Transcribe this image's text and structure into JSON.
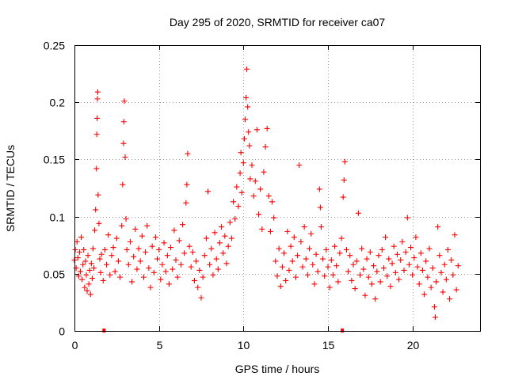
{
  "chart_data": {
    "type": "scatter",
    "title": "Day 295 of 2020, SRMTID for receiver ca07",
    "xlabel": "GPS time / hours",
    "ylabel": "SRMTID / TECUs",
    "xlim": [
      0,
      24
    ],
    "ylim": [
      0,
      0.25
    ],
    "xticks": [
      0,
      5,
      10,
      15,
      20
    ],
    "xtick_labels": [
      "0",
      "5",
      "10",
      "15",
      "20"
    ],
    "yticks": [
      0,
      0.05,
      0.1,
      0.15,
      0.2,
      0.25
    ],
    "ytick_labels": [
      "0",
      "0.05",
      "0.1",
      "0.15",
      "0.2",
      "0.25"
    ],
    "grid": true,
    "marker": "plus",
    "color": "#ff0000",
    "x_axis_markers": [
      1.75,
      15.85
    ],
    "series": [
      {
        "name": "SRMTID",
        "points": [
          [
            0.0,
            0.062
          ],
          [
            0.05,
            0.071
          ],
          [
            0.1,
            0.055
          ],
          [
            0.15,
            0.078
          ],
          [
            0.2,
            0.064
          ],
          [
            0.25,
            0.048
          ],
          [
            0.3,
            0.069
          ],
          [
            0.35,
            0.052
          ],
          [
            0.4,
            0.082
          ],
          [
            0.45,
            0.045
          ],
          [
            0.5,
            0.058
          ],
          [
            0.55,
            0.071
          ],
          [
            0.6,
            0.038
          ],
          [
            0.65,
            0.061
          ],
          [
            0.7,
            0.049
          ],
          [
            0.75,
            0.035
          ],
          [
            0.8,
            0.066
          ],
          [
            0.85,
            0.041
          ],
          [
            0.9,
            0.053
          ],
          [
            0.95,
            0.032
          ],
          [
            1.0,
            0.059
          ],
          [
            1.05,
            0.046
          ],
          [
            1.1,
            0.072
          ],
          [
            1.15,
            0.055
          ],
          [
            1.2,
            0.088
          ],
          [
            1.25,
            0.106
          ],
          [
            1.3,
            0.142
          ],
          [
            1.32,
            0.172
          ],
          [
            1.34,
            0.186
          ],
          [
            1.36,
            0.203
          ],
          [
            1.38,
            0.209
          ],
          [
            1.4,
            0.119
          ],
          [
            1.45,
            0.094
          ],
          [
            1.5,
            0.063
          ],
          [
            1.55,
            0.051
          ],
          [
            1.6,
            0.067
          ],
          [
            1.7,
            0.044
          ],
          [
            1.8,
            0.071
          ],
          [
            1.9,
            0.058
          ],
          [
            2.0,
            0.084
          ],
          [
            2.1,
            0.049
          ],
          [
            2.2,
            0.066
          ],
          [
            2.3,
            0.073
          ],
          [
            2.4,
            0.052
          ],
          [
            2.5,
            0.081
          ],
          [
            2.6,
            0.061
          ],
          [
            2.7,
            0.047
          ],
          [
            2.8,
            0.092
          ],
          [
            2.85,
            0.128
          ],
          [
            2.9,
            0.164
          ],
          [
            2.92,
            0.183
          ],
          [
            2.95,
            0.201
          ],
          [
            3.0,
            0.152
          ],
          [
            3.05,
            0.098
          ],
          [
            3.1,
            0.071
          ],
          [
            3.2,
            0.058
          ],
          [
            3.3,
            0.078
          ],
          [
            3.4,
            0.043
          ],
          [
            3.5,
            0.065
          ],
          [
            3.6,
            0.089
          ],
          [
            3.7,
            0.054
          ],
          [
            3.8,
            0.072
          ],
          [
            3.9,
            0.061
          ],
          [
            4.0,
            0.083
          ],
          [
            4.1,
            0.047
          ],
          [
            4.2,
            0.069
          ],
          [
            4.3,
            0.092
          ],
          [
            4.4,
            0.055
          ],
          [
            4.5,
            0.038
          ],
          [
            4.6,
            0.074
          ],
          [
            4.7,
            0.051
          ],
          [
            4.8,
            0.082
          ],
          [
            4.9,
            0.063
          ],
          [
            5.0,
            0.071
          ],
          [
            5.1,
            0.045
          ],
          [
            5.2,
            0.058
          ],
          [
            5.3,
            0.077
          ],
          [
            5.4,
            0.052
          ],
          [
            5.5,
            0.066
          ],
          [
            5.6,
            0.041
          ],
          [
            5.7,
            0.073
          ],
          [
            5.8,
            0.054
          ],
          [
            5.9,
            0.088
          ],
          [
            6.0,
            0.062
          ],
          [
            6.1,
            0.047
          ],
          [
            6.2,
            0.079
          ],
          [
            6.3,
            0.058
          ],
          [
            6.4,
            0.093
          ],
          [
            6.5,
            0.068
          ],
          [
            6.6,
            0.112
          ],
          [
            6.65,
            0.128
          ],
          [
            6.7,
            0.155
          ],
          [
            6.8,
            0.074
          ],
          [
            6.9,
            0.056
          ],
          [
            7.0,
            0.069
          ],
          [
            7.1,
            0.044
          ],
          [
            7.2,
            0.061
          ],
          [
            7.3,
            0.038
          ],
          [
            7.4,
            0.053
          ],
          [
            7.5,
            0.029
          ],
          [
            7.6,
            0.047
          ],
          [
            7.7,
            0.066
          ],
          [
            7.8,
            0.081
          ],
          [
            7.9,
            0.122
          ],
          [
            8.0,
            0.058
          ],
          [
            8.1,
            0.072
          ],
          [
            8.2,
            0.049
          ],
          [
            8.3,
            0.086
          ],
          [
            8.4,
            0.063
          ],
          [
            8.5,
            0.054
          ],
          [
            8.6,
            0.077
          ],
          [
            8.7,
            0.091
          ],
          [
            8.8,
            0.068
          ],
          [
            8.9,
            0.083
          ],
          [
            9.0,
            0.059
          ],
          [
            9.1,
            0.074
          ],
          [
            9.2,
            0.095
          ],
          [
            9.3,
            0.081
          ],
          [
            9.4,
            0.113
          ],
          [
            9.5,
            0.098
          ],
          [
            9.6,
            0.126
          ],
          [
            9.7,
            0.109
          ],
          [
            9.8,
            0.138
          ],
          [
            9.85,
            0.156
          ],
          [
            9.9,
            0.121
          ],
          [
            10.0,
            0.147
          ],
          [
            10.05,
            0.168
          ],
          [
            10.1,
            0.185
          ],
          [
            10.15,
            0.204
          ],
          [
            10.2,
            0.229
          ],
          [
            10.25,
            0.196
          ],
          [
            10.3,
            0.174
          ],
          [
            10.35,
            0.162
          ],
          [
            10.4,
            0.133
          ],
          [
            10.5,
            0.145
          ],
          [
            10.6,
            0.118
          ],
          [
            10.7,
            0.131
          ],
          [
            10.8,
            0.176
          ],
          [
            10.9,
            0.102
          ],
          [
            11.0,
            0.124
          ],
          [
            11.1,
            0.089
          ],
          [
            11.2,
            0.139
          ],
          [
            11.3,
            0.161
          ],
          [
            11.4,
            0.177
          ],
          [
            11.5,
            0.118
          ],
          [
            11.6,
            0.087
          ],
          [
            11.7,
            0.113
          ],
          [
            11.8,
            0.099
          ],
          [
            11.9,
            0.061
          ],
          [
            12.0,
            0.048
          ],
          [
            12.1,
            0.072
          ],
          [
            12.2,
            0.039
          ],
          [
            12.3,
            0.056
          ],
          [
            12.4,
            0.068
          ],
          [
            12.5,
            0.044
          ],
          [
            12.6,
            0.087
          ],
          [
            12.7,
            0.053
          ],
          [
            12.8,
            0.074
          ],
          [
            12.9,
            0.061
          ],
          [
            13.0,
            0.082
          ],
          [
            13.1,
            0.047
          ],
          [
            13.2,
            0.066
          ],
          [
            13.3,
            0.145
          ],
          [
            13.4,
            0.078
          ],
          [
            13.5,
            0.056
          ],
          [
            13.6,
            0.091
          ],
          [
            13.7,
            0.063
          ],
          [
            13.8,
            0.049
          ],
          [
            13.9,
            0.072
          ],
          [
            14.0,
            0.085
          ],
          [
            14.1,
            0.058
          ],
          [
            14.2,
            0.041
          ],
          [
            14.3,
            0.067
          ],
          [
            14.4,
            0.052
          ],
          [
            14.5,
            0.124
          ],
          [
            14.55,
            0.108
          ],
          [
            14.6,
            0.091
          ],
          [
            14.7,
            0.063
          ],
          [
            14.8,
            0.048
          ],
          [
            14.9,
            0.071
          ],
          [
            15.0,
            0.056
          ],
          [
            15.1,
            0.038
          ],
          [
            15.2,
            0.062
          ],
          [
            15.3,
            0.049
          ],
          [
            15.4,
            0.074
          ],
          [
            15.5,
            0.057
          ],
          [
            15.6,
            0.043
          ],
          [
            15.7,
            0.068
          ],
          [
            15.8,
            0.081
          ],
          [
            15.9,
            0.117
          ],
          [
            15.95,
            0.132
          ],
          [
            16.0,
            0.148
          ],
          [
            16.1,
            0.071
          ],
          [
            16.2,
            0.052
          ],
          [
            16.3,
            0.066
          ],
          [
            16.4,
            0.044
          ],
          [
            16.5,
            0.058
          ],
          [
            16.6,
            0.037
          ],
          [
            16.7,
            0.061
          ],
          [
            16.8,
            0.103
          ],
          [
            16.9,
            0.049
          ],
          [
            17.0,
            0.072
          ],
          [
            17.1,
            0.054
          ],
          [
            17.2,
            0.031
          ],
          [
            17.3,
            0.063
          ],
          [
            17.4,
            0.047
          ],
          [
            17.5,
            0.069
          ],
          [
            17.6,
            0.041
          ],
          [
            17.7,
            0.057
          ],
          [
            17.8,
            0.028
          ],
          [
            17.9,
            0.052
          ],
          [
            18.0,
            0.066
          ],
          [
            18.1,
            0.043
          ],
          [
            18.2,
            0.071
          ],
          [
            18.3,
            0.055
          ],
          [
            18.4,
            0.082
          ],
          [
            18.5,
            0.048
          ],
          [
            18.6,
            0.063
          ],
          [
            18.7,
            0.039
          ],
          [
            18.8,
            0.059
          ],
          [
            18.9,
            0.074
          ],
          [
            19.0,
            0.051
          ],
          [
            19.1,
            0.067
          ],
          [
            19.2,
            0.045
          ],
          [
            19.3,
            0.062
          ],
          [
            19.4,
            0.078
          ],
          [
            19.5,
            0.053
          ],
          [
            19.6,
            0.069
          ],
          [
            19.7,
            0.099
          ],
          [
            19.8,
            0.058
          ],
          [
            19.9,
            0.073
          ],
          [
            20.0,
            0.049
          ],
          [
            20.1,
            0.064
          ],
          [
            20.2,
            0.082
          ],
          [
            20.3,
            0.056
          ],
          [
            20.4,
            0.041
          ],
          [
            20.5,
            0.068
          ],
          [
            20.6,
            0.053
          ],
          [
            20.7,
            0.032
          ],
          [
            20.8,
            0.061
          ],
          [
            20.9,
            0.047
          ],
          [
            21.0,
            0.072
          ],
          [
            21.1,
            0.038
          ],
          [
            21.2,
            0.055
          ],
          [
            21.3,
            0.021
          ],
          [
            21.35,
            0.012
          ],
          [
            21.4,
            0.043
          ],
          [
            21.5,
            0.091
          ],
          [
            21.6,
            0.066
          ],
          [
            21.7,
            0.051
          ],
          [
            21.8,
            0.034
          ],
          [
            21.9,
            0.058
          ],
          [
            22.0,
            0.045
          ],
          [
            22.1,
            0.071
          ],
          [
            22.2,
            0.028
          ],
          [
            22.3,
            0.062
          ],
          [
            22.4,
            0.049
          ],
          [
            22.5,
            0.084
          ],
          [
            22.6,
            0.036
          ],
          [
            22.7,
            0.057
          ]
        ]
      }
    ]
  }
}
